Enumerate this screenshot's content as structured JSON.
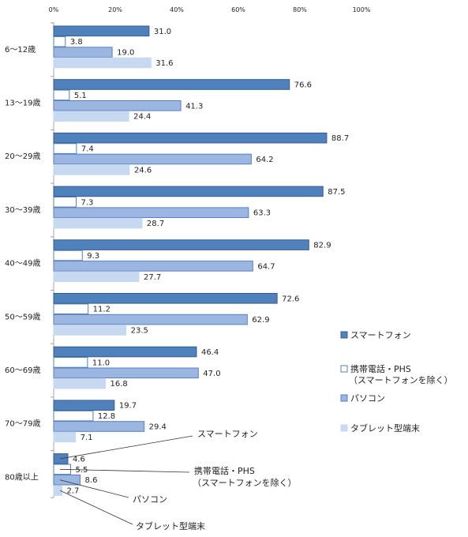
{
  "chart_data": {
    "type": "bar",
    "orientation": "horizontal",
    "xlim": [
      0,
      100
    ],
    "x_ticks": [
      "0%",
      "20%",
      "40%",
      "60%",
      "80%",
      "100%"
    ],
    "x_tick_values": [
      0,
      20,
      40,
      60,
      80,
      100
    ],
    "grid": false,
    "legend_placement": "right",
    "categories": [
      "6～12歳",
      "13～19歳",
      "20～29歳",
      "30～39歳",
      "40～49歳",
      "50～59歳",
      "60～69歳",
      "70～79歳",
      "80歳以上"
    ],
    "series": [
      {
        "name": "スマートフォン",
        "values": [
          31.0,
          76.6,
          88.7,
          87.5,
          82.9,
          72.6,
          46.4,
          19.7,
          4.6
        ]
      },
      {
        "name": "携帯電話・PHS",
        "name_line2": "（スマートフォンを除く）",
        "values": [
          3.8,
          5.1,
          7.4,
          7.3,
          9.3,
          11.2,
          11.0,
          12.8,
          5.5
        ]
      },
      {
        "name": "パソコン",
        "values": [
          19.0,
          41.3,
          64.2,
          63.3,
          64.7,
          62.9,
          47.0,
          29.4,
          8.6
        ]
      },
      {
        "name": "タブレット型端末",
        "values": [
          31.6,
          24.4,
          24.6,
          28.7,
          27.7,
          23.5,
          16.8,
          7.1,
          2.7
        ]
      }
    ],
    "value_labels": [
      [
        "31.0",
        "3.8",
        "19.0",
        "31.6"
      ],
      [
        "76.6",
        "5.1",
        "41.3",
        "24.4"
      ],
      [
        "88.7",
        "7.4",
        "64.2",
        "24.6"
      ],
      [
        "87.5",
        "7.3",
        "63.3",
        "28.7"
      ],
      [
        "82.9",
        "9.3",
        "64.7",
        "27.7"
      ],
      [
        "72.6",
        "11.2",
        "62.9",
        "23.5"
      ],
      [
        "46.4",
        "11.0",
        "47.0",
        "16.8"
      ],
      [
        "19.7",
        "12.8",
        "29.4",
        "7.1"
      ],
      [
        "4.6",
        "5.5",
        "8.6",
        "2.7"
      ]
    ],
    "annotations": [
      {
        "text": "スマートフォン",
        "series": 0
      },
      {
        "text": "携帯電話・PHS",
        "text_line2": "（スマートフォンを除く）",
        "series": 1
      },
      {
        "text": "パソコン",
        "series": 2
      },
      {
        "text": "タブレット型端末",
        "series": 3
      }
    ]
  },
  "colors": {
    "series": [
      "#4f81bd",
      "#ffffff",
      "#9bb7e1",
      "#c6d9f1"
    ],
    "stroke": [
      "#385d8a",
      "#4f81bd",
      "#5a7fbf",
      "#c6d9f1"
    ],
    "axis": "#a6a6a6",
    "leader": "#333333"
  }
}
